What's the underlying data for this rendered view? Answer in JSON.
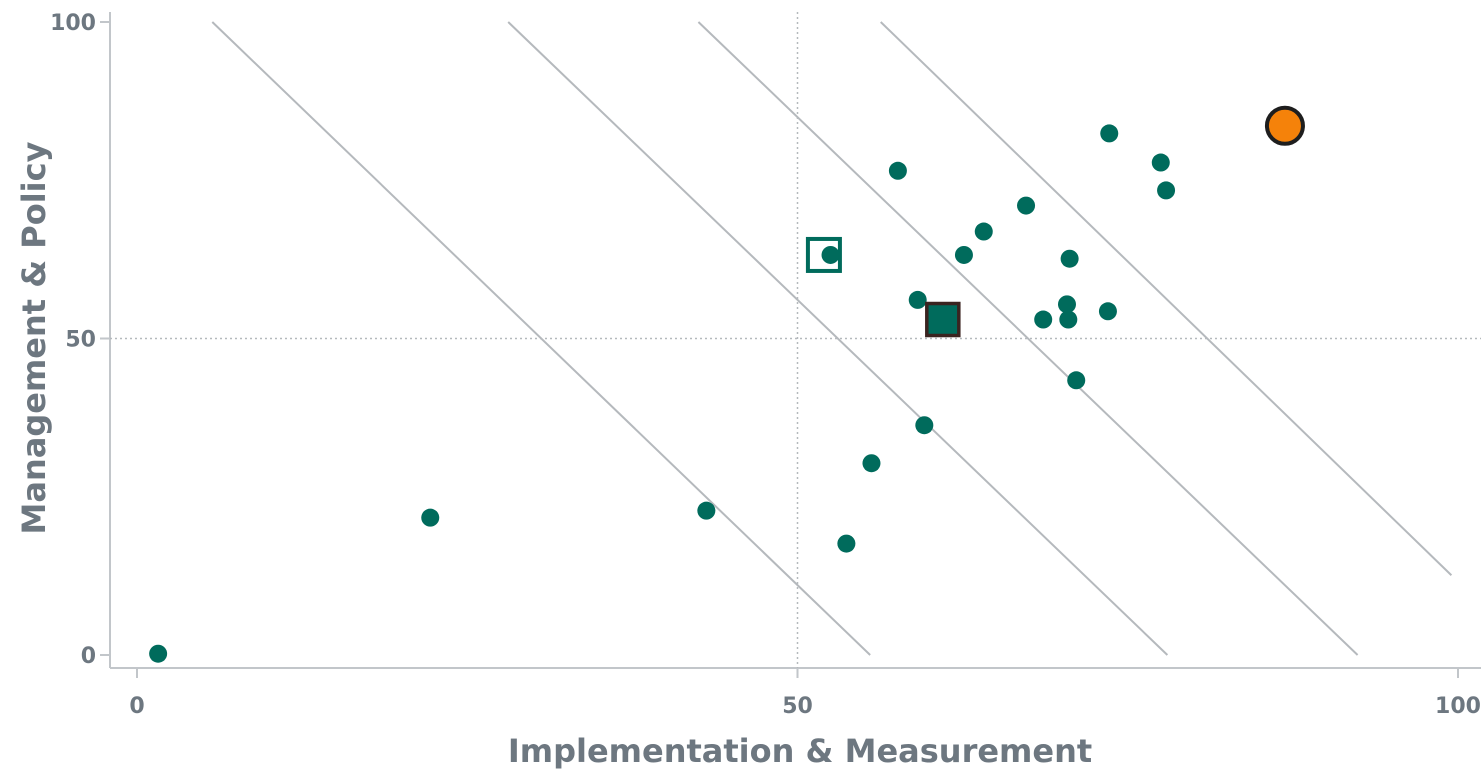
{
  "chart_data": {
    "type": "scatter",
    "xlabel": "Implementation & Measurement",
    "ylabel": "Management & Policy",
    "xlim": [
      0,
      100
    ],
    "ylim": [
      0,
      100
    ],
    "x_ticks": [
      "0",
      "50",
      "100"
    ],
    "y_ticks": [
      "0",
      "50",
      "100"
    ],
    "reference_lines": {
      "x": 50,
      "y": 50,
      "style": "dotted"
    },
    "diagonal_lines": [
      {
        "from": [
          5.7,
          100
        ],
        "to": [
          55.5,
          0
        ]
      },
      {
        "from": [
          28.1,
          100
        ],
        "to": [
          78,
          0
        ]
      },
      {
        "from": [
          42.5,
          100
        ],
        "to": [
          92.4,
          0
        ]
      },
      {
        "from": [
          56.3,
          100
        ],
        "to": [
          99.5,
          12.6
        ]
      }
    ],
    "colors": {
      "points": "#006b5c",
      "highlight": "#f5820a",
      "frame": "#c2c6ca",
      "guides": "#b5b9bd"
    },
    "series": [
      {
        "points": [
          [
            1.6,
            0.2
          ],
          [
            22.2,
            21.7
          ],
          [
            43.1,
            22.8
          ],
          [
            53.7,
            17.6
          ],
          [
            55.6,
            30.3
          ],
          [
            59.6,
            36.3
          ],
          [
            59.1,
            56.1
          ],
          [
            57.6,
            76.5
          ],
          [
            52.5,
            63.2
          ],
          [
            62.6,
            63.2
          ],
          [
            64.1,
            66.9
          ],
          [
            67.3,
            71.0
          ],
          [
            68.6,
            53.0
          ],
          [
            70.4,
            55.4
          ],
          [
            70.5,
            53.0
          ],
          [
            70.6,
            62.6
          ],
          [
            71.1,
            43.4
          ],
          [
            73.5,
            54.3
          ],
          [
            73.6,
            82.4
          ],
          [
            77.5,
            77.8
          ],
          [
            77.9,
            73.4
          ]
        ]
      }
    ],
    "highlight_circle": [
      86.9,
      83.6
    ],
    "filled_square": [
      61.0,
      53.0
    ],
    "open_square": [
      52.0,
      63.2
    ]
  }
}
